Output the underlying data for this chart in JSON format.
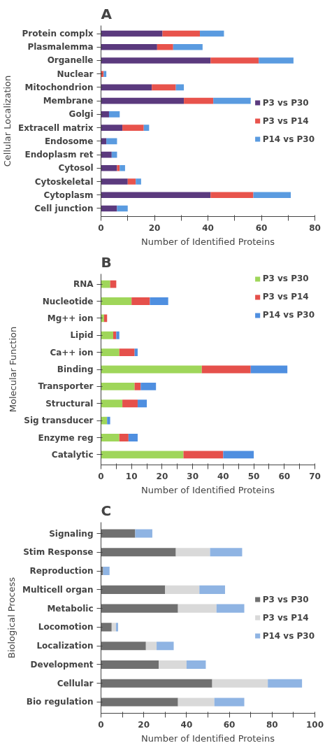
{
  "chart_data": [
    {
      "type": "bar",
      "orientation": "horizontal",
      "stacked": true,
      "title": "A",
      "ylabel": "Cellular Localization",
      "xlabel": "Number of Identified Proteins",
      "categories": [
        "Protein complx",
        "Plasmalemma",
        "Organelle",
        "Nuclear",
        "Mitochondrion",
        "Membrane",
        "Golgi",
        "Extracell matrix",
        "Endosome",
        "Endoplasm ret",
        "Cytosol",
        "Cytoskeletal",
        "Cytoplasm",
        "Cell junction"
      ],
      "series": [
        {
          "name": "P3 vs P30",
          "color": "#5b3a7e",
          "values": [
            23,
            21,
            41,
            0,
            19,
            31,
            3,
            8,
            2,
            4,
            6,
            10,
            41,
            6
          ]
        },
        {
          "name": "P3 vs P14",
          "color": "#e8534c",
          "values": [
            14,
            6,
            18,
            1,
            9,
            11,
            0,
            8,
            0,
            0,
            1,
            3,
            16,
            0
          ]
        },
        {
          "name": "P14 vs P30",
          "color": "#5a9be0",
          "values": [
            9,
            11,
            13,
            1,
            3,
            14,
            4,
            2,
            4,
            2,
            2,
            2,
            14,
            4
          ]
        }
      ],
      "xlim": [
        0,
        80
      ],
      "xticks": [
        0,
        {
          "value": 10,
          "label": null
        },
        20,
        {
          "value": 30,
          "label": null
        },
        40,
        {
          "value": 50,
          "label": null
        },
        60,
        {
          "value": 70,
          "label": null
        },
        80
      ],
      "legend": "right",
      "grid": false
    },
    {
      "type": "bar",
      "orientation": "horizontal",
      "stacked": true,
      "title": "B",
      "ylabel": "Molecular Function",
      "xlabel": "Number of Identified Proteins",
      "categories": [
        "RNA",
        "Nucleotide",
        "Mg++ ion",
        "Lipid",
        "Ca++ ion",
        "Binding",
        "Transporter",
        "Structural",
        "Sig transducer",
        "Enzyme reg",
        "Catalytic"
      ],
      "series": [
        {
          "name": "P3 vs P30",
          "color": "#9fd65a",
          "values": [
            3,
            10,
            1,
            4,
            6,
            33,
            11,
            7,
            2,
            6,
            27
          ]
        },
        {
          "name": "P3 vs P14",
          "color": "#e5504b",
          "values": [
            2,
            6,
            1,
            1,
            5,
            16,
            2,
            5,
            0,
            3,
            13
          ]
        },
        {
          "name": "P14 vs P30",
          "color": "#4f8fe0",
          "values": [
            0,
            6,
            0,
            1,
            1,
            12,
            5,
            3,
            1,
            3,
            10
          ]
        }
      ],
      "xlim": [
        0,
        70
      ],
      "xticks": [
        0,
        {
          "value": 5,
          "label": null
        },
        10,
        {
          "value": 15,
          "label": null
        },
        20,
        {
          "value": 25,
          "label": null
        },
        30,
        {
          "value": 35,
          "label": null
        },
        40,
        {
          "value": 45,
          "label": null
        },
        50,
        {
          "value": 55,
          "label": null
        },
        60,
        {
          "value": 65,
          "label": null
        },
        70
      ],
      "legend": "top right",
      "grid": false
    },
    {
      "type": "bar",
      "orientation": "horizontal",
      "stacked": true,
      "title": "C",
      "ylabel": "Biological Process",
      "xlabel": "Number of Identified Proteins",
      "categories": [
        "Signaling",
        "Stim Response",
        "Reproduction",
        "Multicell organ",
        "Metabolic",
        "Locomotion",
        "Localization",
        "Development",
        "Cellular",
        "Bio regulation"
      ],
      "series": [
        {
          "name": "P3 vs P30",
          "color": "#707070",
          "values": [
            16,
            35,
            1,
            30,
            36,
            5,
            21,
            27,
            52,
            36
          ]
        },
        {
          "name": "P3 vs P14",
          "color": "#d9d9d9",
          "values": [
            0,
            16,
            0,
            16,
            18,
            2,
            5,
            13,
            26,
            17
          ]
        },
        {
          "name": "P14 vs P30",
          "color": "#8fb4e3",
          "values": [
            8,
            15,
            3,
            12,
            13,
            1,
            8,
            9,
            16,
            14
          ]
        }
      ],
      "xlim": [
        0,
        100
      ],
      "xticks": [
        0,
        {
          "value": 10,
          "label": null
        },
        20,
        {
          "value": 30,
          "label": null
        },
        40,
        {
          "value": 50,
          "label": null
        },
        60,
        {
          "value": 70,
          "label": null
        },
        80,
        {
          "value": 90,
          "label": null
        },
        100
      ],
      "legend": "right",
      "grid": false
    }
  ]
}
